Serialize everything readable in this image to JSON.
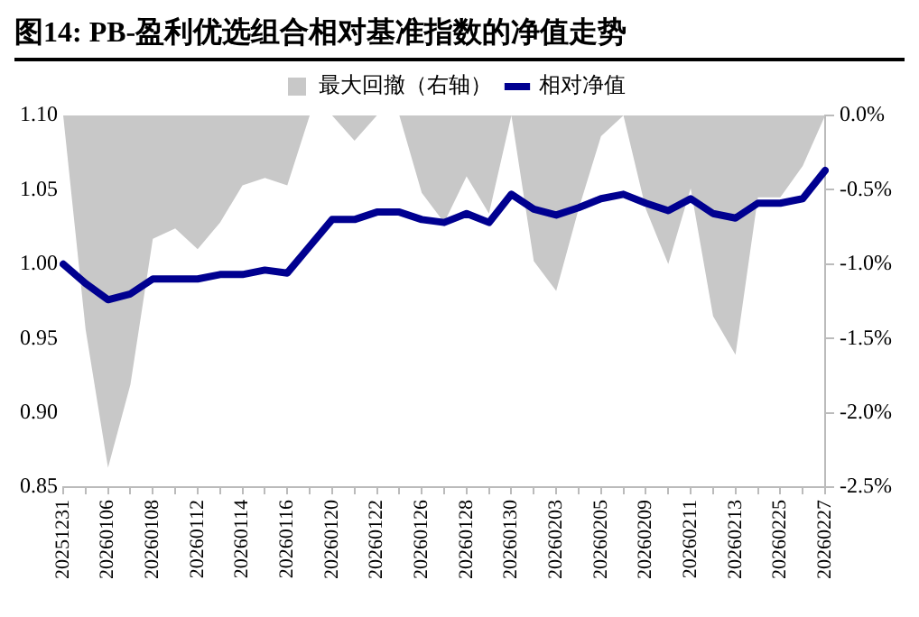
{
  "chart_data": {
    "type": "line",
    "title": "图14:  PB-盈利优选组合相对基准指数的净值走势",
    "categories": [
      "20251231",
      null,
      "20260106",
      null,
      "20260108",
      null,
      "20260112",
      null,
      "20260114",
      null,
      "20260116",
      null,
      "20260120",
      null,
      "20260122",
      null,
      "20260126",
      null,
      "20260128",
      null,
      "20260130",
      null,
      "20260203",
      null,
      "20260205",
      null,
      "20260209",
      null,
      "20260211",
      null,
      "20260213",
      null,
      "20260225",
      null,
      "20260227"
    ],
    "series": [
      {
        "name": "最大回撤（右轴）",
        "type": "area",
        "axis": "y2",
        "color": "#c8c8c8",
        "values": [
          0,
          -1.44,
          -2.37,
          -1.81,
          -0.83,
          -0.76,
          -0.9,
          -0.72,
          -0.47,
          -0.42,
          -0.47,
          0,
          0,
          -0.17,
          0,
          0,
          -0.52,
          -0.72,
          -0.41,
          -0.66,
          0,
          -0.98,
          -1.18,
          -0.63,
          -0.14,
          0,
          -0.63,
          -1.0,
          -0.49,
          -1.35,
          -1.61,
          -0.55,
          -0.55,
          -0.34,
          0
        ]
      },
      {
        "name": "相对净值",
        "type": "line",
        "color": "#000090",
        "values": [
          1.0,
          0.987,
          0.976,
          0.98,
          0.99,
          0.99,
          0.99,
          0.993,
          0.993,
          0.996,
          0.994,
          1.012,
          1.03,
          1.03,
          1.035,
          1.035,
          1.03,
          1.028,
          1.034,
          1.028,
          1.047,
          1.037,
          1.033,
          1.038,
          1.044,
          1.047,
          1.041,
          1.036,
          1.044,
          1.034,
          1.031,
          1.041,
          1.041,
          1.044,
          1.063
        ]
      }
    ],
    "ylim": [
      0.85,
      1.1
    ],
    "yticks": [
      {
        "value": 0.85,
        "label": "0.85"
      },
      {
        "value": 0.9,
        "label": "0.90"
      },
      {
        "value": 0.95,
        "label": "0.95"
      },
      {
        "value": 1.0,
        "label": "1.00"
      },
      {
        "value": 1.05,
        "label": "1.05"
      },
      {
        "value": 1.1,
        "label": "1.10"
      }
    ],
    "y2lim": [
      -2.5,
      0
    ],
    "y2ticks": [
      {
        "value": -2.5,
        "label": "-2.5%"
      },
      {
        "value": -2.0,
        "label": "-2.0%"
      },
      {
        "value": -1.5,
        "label": "-1.5%"
      },
      {
        "value": -1.0,
        "label": "-1.0%"
      },
      {
        "value": -0.5,
        "label": "-0.5%"
      },
      {
        "value": 0,
        "label": "0.0%"
      }
    ],
    "legend": "top",
    "marker": "none",
    "line_style": "solid"
  }
}
